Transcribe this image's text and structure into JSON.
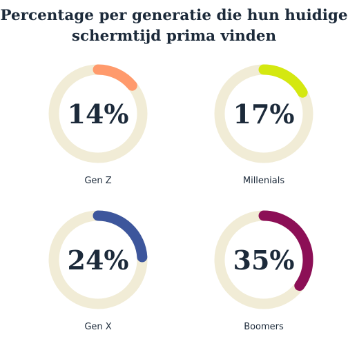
{
  "title_line1": "Percentage per generatie die hun huidige",
  "title_line2": "schermtijd prima vinden",
  "colors": {
    "track": "#f1ecd6",
    "text": "#1c2a3a",
    "gen_z": "#ff9a6c",
    "millenials": "#d4e810",
    "gen_x": "#3d569c",
    "boomers": "#8c0f56"
  },
  "chart_data": [
    {
      "type": "pie",
      "category": "Gen Z",
      "value": 14,
      "label": "14%",
      "color": "#ff9a6c"
    },
    {
      "type": "pie",
      "category": "Millenials",
      "value": 17,
      "label": "17%",
      "color": "#d4e810"
    },
    {
      "type": "pie",
      "category": "Gen X",
      "value": 24,
      "label": "24%",
      "color": "#3d569c"
    },
    {
      "type": "pie",
      "category": "Boomers",
      "value": 35,
      "label": "35%",
      "color": "#8c0f56"
    }
  ]
}
